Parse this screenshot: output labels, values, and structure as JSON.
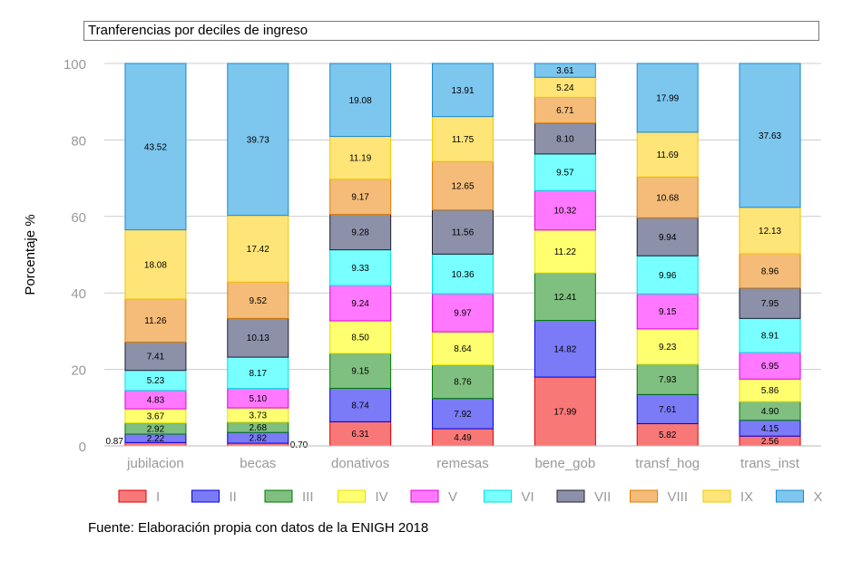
{
  "chart_data": {
    "type": "bar",
    "stacked": true,
    "title": "Tranferencias por deciles de ingreso",
    "xlabel": "",
    "ylabel": "Porcentaje %",
    "ylim": [
      0,
      100
    ],
    "yticks": [
      "0",
      "20",
      "40",
      "60",
      "80",
      "100"
    ],
    "grid": true,
    "legend_position": "bottom",
    "categories": [
      "jubilacion",
      "becas",
      "donativos",
      "remesas",
      "bene_gob",
      "transf_hog",
      "trans_inst"
    ],
    "series": [
      {
        "name": "I",
        "color": "#f87878",
        "border": "#e00000",
        "values": [
          0.87,
          0.7,
          6.31,
          4.49,
          17.99,
          5.82,
          2.56
        ]
      },
      {
        "name": "II",
        "color": "#7b7bf8",
        "border": "#0000e0",
        "values": [
          2.22,
          2.82,
          8.74,
          7.92,
          14.82,
          7.61,
          4.15
        ]
      },
      {
        "name": "III",
        "color": "#7fbf7f",
        "border": "#007a00",
        "values": [
          2.92,
          2.68,
          9.15,
          8.76,
          12.41,
          7.93,
          4.9
        ]
      },
      {
        "name": "IV",
        "color": "#ffff70",
        "border": "#e0e000",
        "values": [
          3.67,
          3.73,
          8.5,
          8.64,
          11.22,
          9.23,
          5.86
        ]
      },
      {
        "name": "V",
        "color": "#ff78ff",
        "border": "#e000e0",
        "values": [
          4.83,
          5.1,
          9.24,
          9.97,
          10.32,
          9.15,
          6.95
        ]
      },
      {
        "name": "VI",
        "color": "#78ffff",
        "border": "#00e0e0",
        "values": [
          5.23,
          8.17,
          9.33,
          10.36,
          9.57,
          9.96,
          8.91
        ]
      },
      {
        "name": "VII",
        "color": "#8c90a8",
        "border": "#202030",
        "values": [
          7.41,
          10.13,
          9.28,
          11.56,
          8.1,
          9.94,
          7.95
        ]
      },
      {
        "name": "VIII",
        "color": "#f4bc78",
        "border": "#e08000",
        "values": [
          11.26,
          9.52,
          9.17,
          12.65,
          6.71,
          10.68,
          8.96
        ]
      },
      {
        "name": "IX",
        "color": "#ffe478",
        "border": "#f0c800",
        "values": [
          18.08,
          17.42,
          11.19,
          11.75,
          5.24,
          11.69,
          12.13
        ]
      },
      {
        "name": "X",
        "color": "#7dc6ee",
        "border": "#1a8ad0",
        "values": [
          43.52,
          39.73,
          19.08,
          13.91,
          3.61,
          17.99,
          37.63
        ]
      }
    ],
    "footer": "Fuente: Elaboración propia con datos de la ENIGH 2018"
  }
}
